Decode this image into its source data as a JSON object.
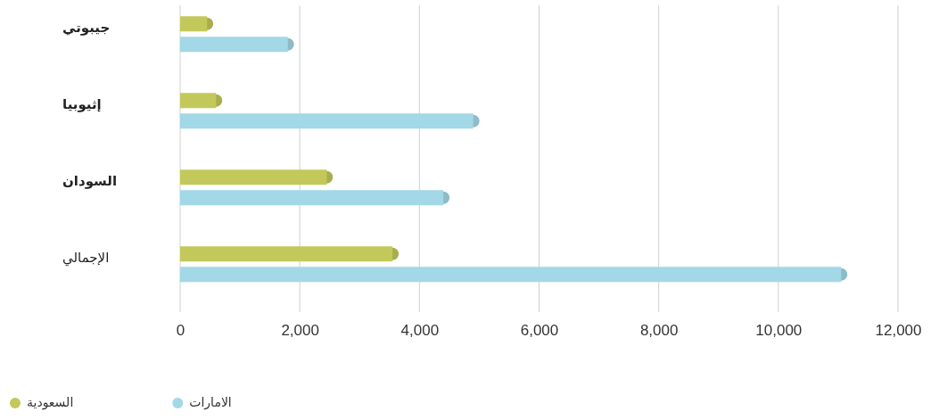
{
  "chart_data": {
    "type": "bar",
    "orientation": "horizontal",
    "categories": [
      "جيبوتي",
      "إثيوبيا",
      "السودان",
      "الإجمالي"
    ],
    "series": [
      {
        "name": "السعودية",
        "color": "#c2c95a",
        "values": [
          450,
          600,
          2450,
          3550
        ]
      },
      {
        "name": "الامارات",
        "color": "#a3d8e6",
        "values": [
          1800,
          4900,
          4400,
          11050
        ]
      }
    ],
    "xlim": [
      0,
      12000
    ],
    "xticks": [
      0,
      {
        "value": 2000,
        "label": "2,000"
      },
      {
        "value": 4000,
        "label": "4,000"
      },
      {
        "value": 6000,
        "label": "6,000"
      },
      {
        "value": 8000,
        "label": "8,000"
      },
      {
        "value": 10000,
        "label": "10,000"
      },
      {
        "value": 12000,
        "label": "12,000"
      }
    ],
    "grid": "x",
    "legend": "bottom left"
  }
}
